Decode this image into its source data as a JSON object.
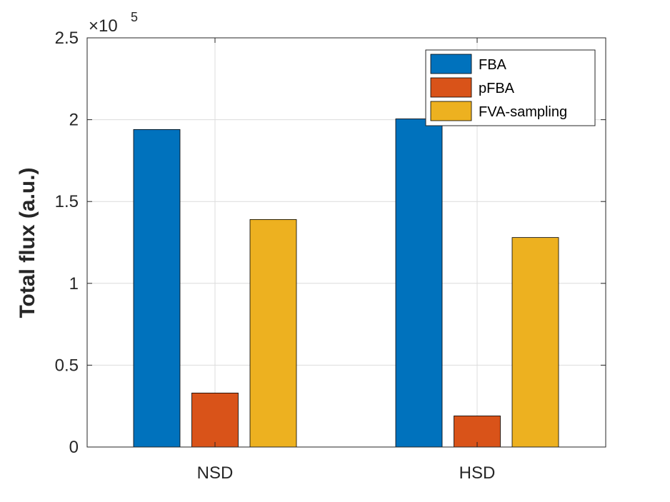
{
  "chart_data": {
    "type": "bar",
    "title": "",
    "xlabel": "",
    "ylabel": "Total flux (a.u.)",
    "categories": [
      "NSD",
      "HSD"
    ],
    "series": [
      {
        "name": "FBA",
        "color": "#0072BD",
        "values": [
          194000,
          200500
        ]
      },
      {
        "name": "pFBA",
        "color": "#D95319",
        "values": [
          33000,
          19000
        ]
      },
      {
        "name": "FVA-sampling",
        "color": "#EDB120",
        "values": [
          139000,
          128000
        ]
      }
    ],
    "ylim": [
      0,
      250000
    ],
    "yticks": [
      0,
      50000,
      100000,
      150000,
      200000,
      250000
    ],
    "ytick_labels": [
      "0",
      "0.5",
      "1",
      "1.5",
      "2",
      "2.5"
    ],
    "y_multiplier": {
      "prefix": "×10",
      "exponent": "5"
    },
    "grid": true,
    "legend_position": "top-right"
  }
}
